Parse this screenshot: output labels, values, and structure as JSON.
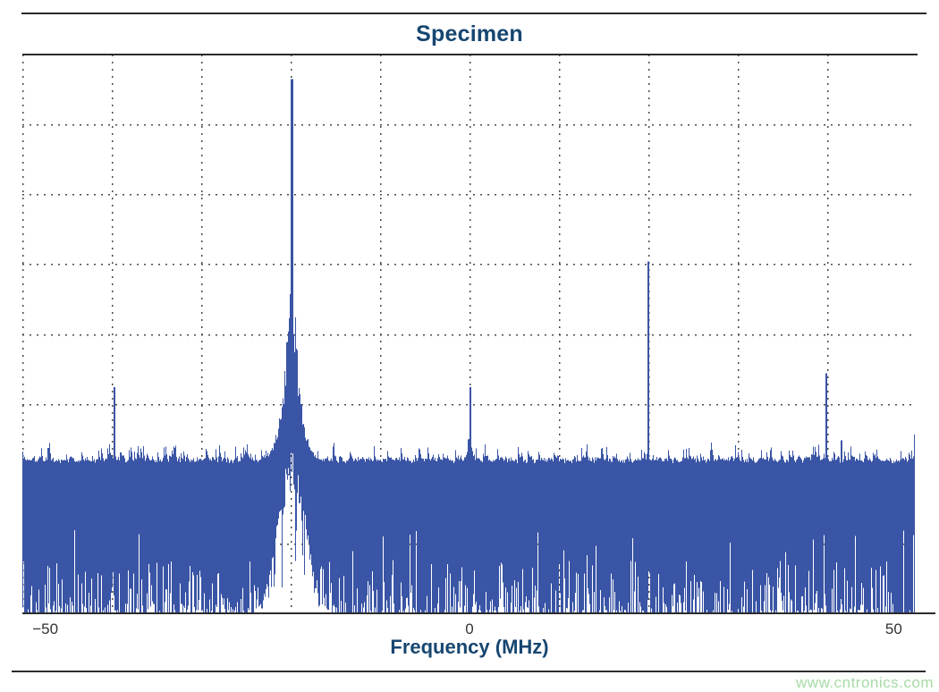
{
  "title": "Specimen",
  "watermark": "www.cntronics.com",
  "colors": {
    "spectrum_fill": "#3a55a5",
    "heading": "#164670",
    "tick_label": "#333333",
    "grid": "#4a4a4a",
    "spine": "#2b2b2b",
    "watermark": "#a8dba8"
  },
  "chart_data": {
    "type": "line",
    "subtype": "power-spectrum",
    "title": "Specimen",
    "xlabel": "Frequency (MHz)",
    "ylabel": "",
    "x_range_mhz": [
      -52.7,
      52.7
    ],
    "x_ticks": [
      {
        "value": -50,
        "label": "−50"
      },
      {
        "value": 0,
        "label": "0"
      },
      {
        "value": 50,
        "label": "50"
      }
    ],
    "y_axis_labels_visible": false,
    "grid": {
      "visible": true,
      "style": "dotted",
      "x_divisions": 10,
      "y_divisions": 8
    },
    "legend": null,
    "noise_floor": {
      "top_amplitude_frac": 0.266,
      "band_fills_to_bottom": true,
      "description": "dense blue noise band from bottom of axes up to ~27% of plot height, with white dropout streaks along the bottom edge and a large white dropout notch centered under the carrier"
    },
    "peaks": [
      {
        "freq_mhz": -42.0,
        "amp_frac": 0.405,
        "type": "narrow-spur"
      },
      {
        "freq_mhz": -21.0,
        "amp_frac": 0.956,
        "type": "carrier-with-skirt"
      },
      {
        "freq_mhz": 0.0,
        "amp_frac": 0.405,
        "type": "narrow-spur-small-skirt"
      },
      {
        "freq_mhz": 21.0,
        "amp_frac": 0.63,
        "type": "narrow-spur"
      },
      {
        "freq_mhz": 42.0,
        "amp_frac": 0.43,
        "type": "narrow-spur"
      },
      {
        "freq_mhz": 43.7,
        "amp_frac": 0.31,
        "type": "narrow-spur"
      },
      {
        "freq_mhz": 52.4,
        "amp_frac": 0.32,
        "type": "narrow-spur-at-edge"
      }
    ]
  }
}
